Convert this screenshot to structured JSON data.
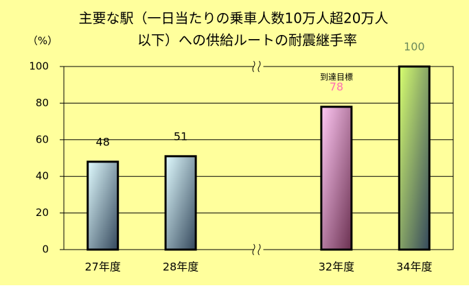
{
  "chart_data": {
    "type": "bar",
    "title": [
      "主要な駅（一日当たりの乗車人数10万人超20万人",
      "以下）への供給ルートの耐震継手率"
    ],
    "y_label": "（%）",
    "annotation": "到達目標",
    "categories": [
      "27年度",
      "28年度",
      null,
      "32年度",
      "34年度"
    ],
    "values": [
      48,
      51,
      null,
      78,
      100
    ],
    "gradients": [
      [
        "#e0fbff",
        "#34485c"
      ],
      [
        "#e0fbff",
        "#34485c"
      ],
      null,
      [
        "#ffc8f4",
        "#6a3050"
      ],
      [
        "#d8ff70",
        "#34485c"
      ]
    ],
    "value_label_colors": [
      "#000000",
      "#000000",
      null,
      "#ff6eb4",
      "#6b8a5a"
    ],
    "ylim": [
      0,
      100
    ],
    "yticks": [
      0,
      20,
      40,
      60,
      80,
      100
    ],
    "grid": true,
    "background": "#ffff9c"
  }
}
